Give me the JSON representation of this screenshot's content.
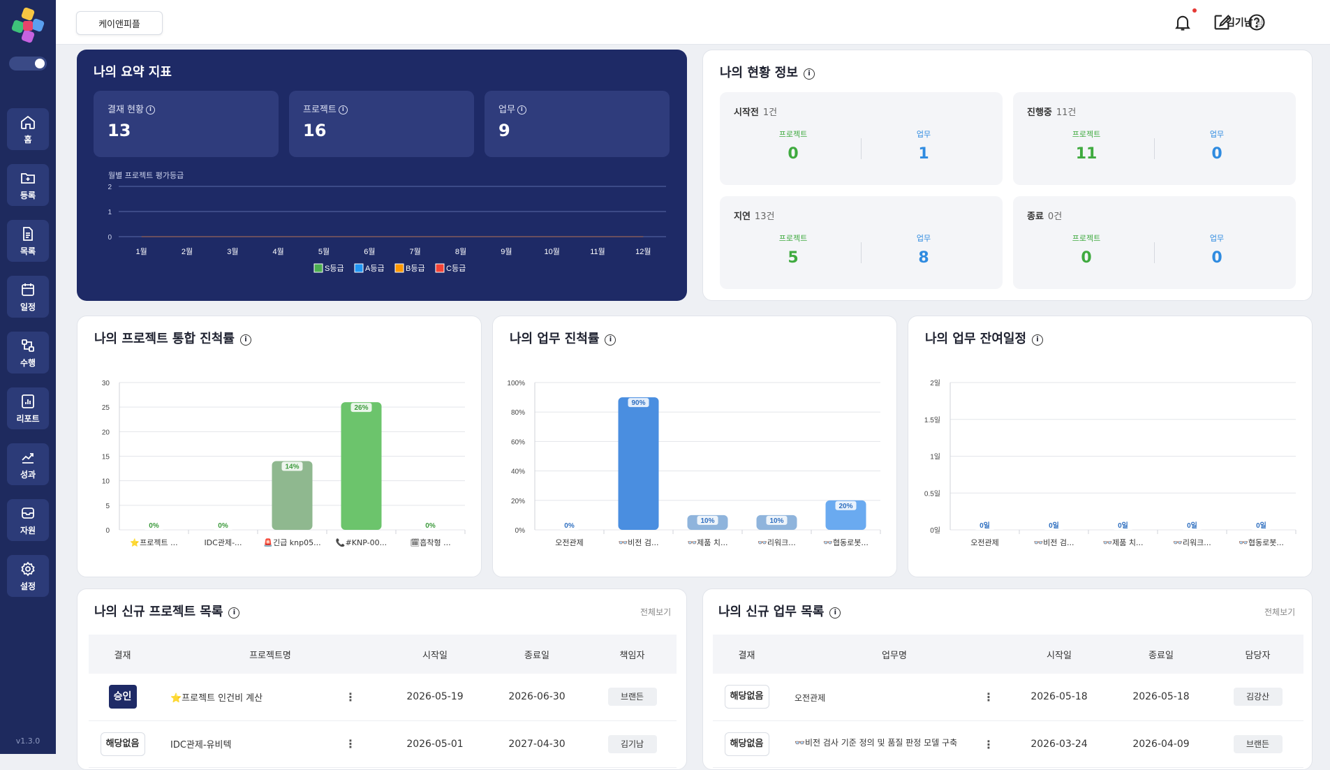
{
  "app": {
    "version": "v1.3.0",
    "company": "케이앤피플",
    "user": "김기남",
    "user_suffix": "님"
  },
  "sidebar": {
    "items": [
      {
        "label": "홈",
        "icon": "home-icon"
      },
      {
        "label": "등록",
        "icon": "folder-plus-icon"
      },
      {
        "label": "목록",
        "icon": "document-icon"
      },
      {
        "label": "일정",
        "icon": "calendar-icon"
      },
      {
        "label": "수행",
        "icon": "workflow-icon"
      },
      {
        "label": "리포트",
        "icon": "report-icon"
      },
      {
        "label": "성과",
        "icon": "trend-icon"
      },
      {
        "label": "자원",
        "icon": "inbox-icon"
      },
      {
        "label": "설정",
        "icon": "gear-icon"
      }
    ]
  },
  "summary": {
    "title": "나의 요약 지표",
    "stats": [
      {
        "label": "결재 현황",
        "value": "13"
      },
      {
        "label": "프로젝트",
        "value": "16"
      },
      {
        "label": "업무",
        "value": "9"
      }
    ],
    "chart_title": "월별 프로젝트 평가등급"
  },
  "status": {
    "title": "나의 현황 정보",
    "project_label": "프로젝트",
    "task_label": "업무",
    "boxes": [
      {
        "title": "시작전",
        "count": "1건",
        "project": "0",
        "task": "1"
      },
      {
        "title": "진행중",
        "count": "11건",
        "project": "11",
        "task": "0"
      },
      {
        "title": "지연",
        "count": "13건",
        "project": "5",
        "task": "8"
      },
      {
        "title": "종료",
        "count": "0건",
        "project": "0",
        "task": "0"
      }
    ]
  },
  "panels": {
    "project_progress": "나의 프로젝트 통합 진척률",
    "task_progress": "나의 업무 진척률",
    "task_remaining": "나의 업무 잔여일정"
  },
  "chart_data": [
    {
      "type": "line",
      "title": "월별 프로젝트 평가등급",
      "categories": [
        "1월",
        "2월",
        "3월",
        "4월",
        "5월",
        "6월",
        "7월",
        "8월",
        "9월",
        "10월",
        "11월",
        "12월"
      ],
      "y_ticks": [
        "0",
        "1",
        "2"
      ],
      "ylim": [
        0,
        2
      ],
      "series": [
        {
          "name": "S등급",
          "color": "#4caf50",
          "values": [
            0,
            0,
            0,
            0,
            0,
            0,
            0,
            0,
            0,
            0,
            0,
            0
          ]
        },
        {
          "name": "A등급",
          "color": "#2196f3",
          "values": [
            0,
            0,
            0,
            0,
            0,
            0,
            0,
            0,
            0,
            0,
            0,
            0
          ]
        },
        {
          "name": "B등급",
          "color": "#ff9800",
          "values": [
            0,
            0,
            0,
            0,
            0,
            0,
            0,
            0,
            0,
            0,
            0,
            0
          ]
        },
        {
          "name": "C등급",
          "color": "#f44336",
          "values": [
            0,
            0,
            0,
            0,
            0,
            0,
            0,
            0,
            0,
            0,
            0,
            0
          ]
        }
      ],
      "legend": "bottom"
    },
    {
      "type": "bar",
      "title": "나의 프로젝트 통합 진척률",
      "categories": [
        "⭐프로젝트 ...",
        "IDC관제-...",
        "🚨긴급 knp05...",
        "📞#KNP-00...",
        "🗓흡착형 ..."
      ],
      "values": [
        0,
        0,
        14,
        26,
        0
      ],
      "labels": [
        "0%",
        "0%",
        "14%",
        "26%",
        "0%"
      ],
      "y_ticks": [
        "0",
        "5",
        "10",
        "15",
        "20",
        "25",
        "30"
      ],
      "ylim": [
        0,
        30
      ],
      "colors": [
        "#6cc46c",
        "#6cc46c",
        "#8fb88f",
        "#6cc46c",
        "#6cc46c"
      ]
    },
    {
      "type": "bar",
      "title": "나의 업무 진척률",
      "categories": [
        "오전관제",
        "👓비전 검...",
        "👓제품 치...",
        "👓리워크...",
        "👓협동로봇..."
      ],
      "values": [
        0,
        90,
        10,
        10,
        20
      ],
      "labels": [
        "0%",
        "90%",
        "10%",
        "10%",
        "20%"
      ],
      "y_ticks": [
        "0%",
        "20%",
        "40%",
        "60%",
        "80%",
        "100%"
      ],
      "ylim": [
        0,
        100
      ],
      "colors": [
        "#4a8ee0",
        "#4a8ee0",
        "#8fb4dc",
        "#8fb4dc",
        "#6aaaf0"
      ]
    },
    {
      "type": "bar",
      "title": "나의 업무 잔여일정",
      "categories": [
        "오전관제",
        "👓비전 검...",
        "👓제품 치...",
        "👓리워크...",
        "👓협동로봇..."
      ],
      "values": [
        0,
        0,
        0,
        0,
        0
      ],
      "labels": [
        "0일",
        "0일",
        "0일",
        "0일",
        "0일"
      ],
      "y_ticks": [
        "0일",
        "0.5일",
        "1일",
        "1.5일",
        "2일"
      ],
      "ylim": [
        0,
        2
      ],
      "colors": [
        "#4a8ee0",
        "#4a8ee0",
        "#4a8ee0",
        "#4a8ee0",
        "#4a8ee0"
      ]
    }
  ],
  "projects": {
    "title": "나의 신규 프로젝트 목록",
    "see_all": "전체보기",
    "headers": [
      "결재",
      "프로젝트명",
      "시작일",
      "종료일",
      "책임자"
    ],
    "rows": [
      {
        "status": "승인",
        "status_type": "ok",
        "name": "⭐프로젝트 인건비 계산",
        "start": "2026-05-19",
        "end": "2026-06-30",
        "owner": "브랜든"
      },
      {
        "status": "해당없음",
        "status_type": "na",
        "name": "IDC관제-유비텍",
        "start": "2026-05-01",
        "end": "2027-04-30",
        "owner": "김기남"
      }
    ]
  },
  "tasks": {
    "title": "나의 신규 업무 목록",
    "see_all": "전체보기",
    "headers": [
      "결재",
      "업무명",
      "시작일",
      "종료일",
      "담당자"
    ],
    "rows": [
      {
        "status": "해당없음",
        "status_type": "na",
        "name": "오전관제",
        "start": "2026-05-18",
        "end": "2026-05-18",
        "owner": "김강산"
      },
      {
        "status": "해당없음",
        "status_type": "na",
        "name": "👓비전 검사 기준 정의 및 품질 판정 모델 구축",
        "start": "2026-03-24",
        "end": "2026-04-09",
        "owner": "브랜든"
      }
    ]
  }
}
